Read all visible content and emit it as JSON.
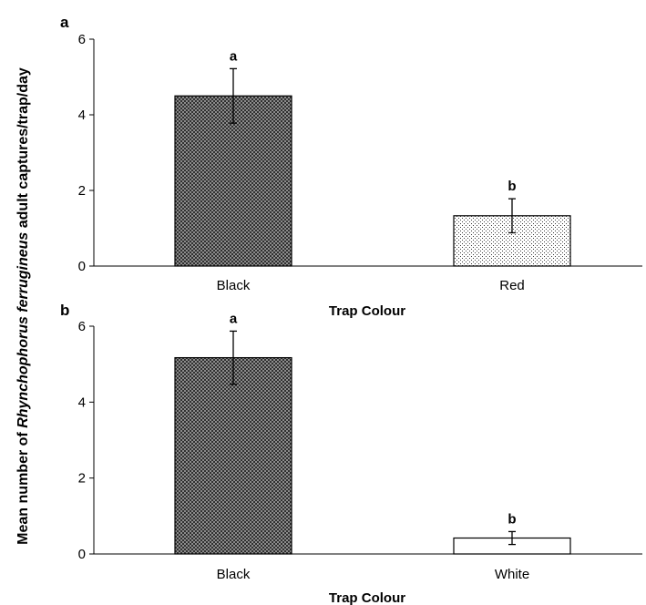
{
  "ylabel": {
    "prefix": "Mean number of ",
    "species": "Rhynchophorus ferrugineus",
    "suffix": " adult captures/trap/day"
  },
  "chart_data": [
    {
      "type": "bar",
      "panel": "a",
      "categories": [
        "Black",
        "Red"
      ],
      "values": [
        4.5,
        1.33
      ],
      "error": [
        0.72,
        0.45
      ],
      "significance": [
        "a",
        "b"
      ],
      "fills": [
        "checker",
        "dots"
      ],
      "xlabel": "Trap Colour",
      "ylim": [
        0,
        6
      ],
      "yticks": [
        "0",
        "2",
        "4",
        "6"
      ],
      "grid": false
    },
    {
      "type": "bar",
      "panel": "b",
      "categories": [
        "Black",
        "White"
      ],
      "values": [
        5.17,
        0.42
      ],
      "error": [
        0.7,
        0.17
      ],
      "significance": [
        "a",
        "b"
      ],
      "fills": [
        "checker",
        "white"
      ],
      "xlabel": "Trap Colour",
      "ylim": [
        0,
        6
      ],
      "yticks": [
        "0",
        "2",
        "4",
        "6"
      ],
      "grid": false
    }
  ]
}
